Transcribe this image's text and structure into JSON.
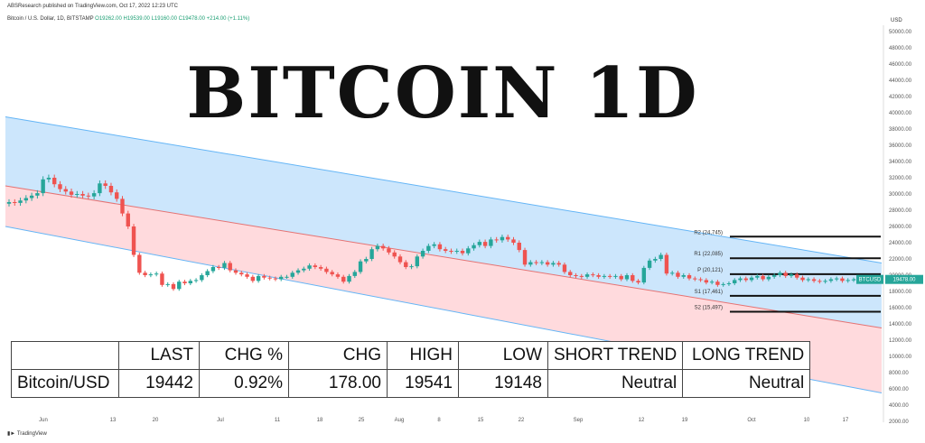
{
  "header": {
    "published": "ABSResearch published on TradingView.com, Oct 17, 2022 12:23 UTC"
  },
  "symbol": {
    "name": "Bitcoin / U.S. Dollar, 1D, BITSTAMP",
    "ohlc": "O19262.00 H19539.00 L19160.00 C19478.00",
    "change": "+214.00 (+1.11%)"
  },
  "title": "BITCOIN 1D",
  "currency": "USD",
  "price_label": "BTCUSD",
  "price_value": "19478.00",
  "footer": {
    "brand": "TradingView"
  },
  "table": {
    "headers": [
      "",
      "LAST",
      "CHG %",
      "CHG",
      "HIGH",
      "LOW",
      "SHORT TREND",
      "LONG TREND"
    ],
    "rows": [
      [
        "Bitcoin/USD",
        "19442",
        "0.92%",
        "178.00",
        "19541",
        "19148",
        "Neutral",
        "Neutral"
      ]
    ]
  },
  "colors": {
    "up": "#26a69a",
    "down": "#ef5350",
    "blue_channel": "#bbdefb",
    "red_channel": "#ffcdd2",
    "price_tag": "#26a69a"
  },
  "chart_data": {
    "type": "candlestick",
    "y_axis": {
      "range": [
        2000,
        50000
      ],
      "ticks": [
        "50000.00",
        "48000.00",
        "46000.00",
        "44000.00",
        "42000.00",
        "40000.00",
        "38000.00",
        "36000.00",
        "34000.00",
        "32000.00",
        "30000.00",
        "28000.00",
        "26000.00",
        "24000.00",
        "22000.00",
        "20000.00",
        "18000.00",
        "16000.00",
        "14000.00",
        "12000.00",
        "10000.00",
        "8000.00",
        "6000.00",
        "4000.00",
        "2000.00"
      ]
    },
    "x_axis": {
      "ticks": [
        "Jun",
        "13",
        "20",
        "Jul",
        "11",
        "18",
        "25",
        "Aug",
        "8",
        "15",
        "22",
        "Sep",
        "12",
        "19",
        "Oct",
        "10",
        "17"
      ]
    },
    "pivots": [
      {
        "label": "R2 (24,745)",
        "value": 24745
      },
      {
        "label": "R1 (22,085)",
        "value": 22085
      },
      {
        "label": "P (20,121)",
        "value": 20121
      },
      {
        "label": "S1 (17,461)",
        "value": 17461
      },
      {
        "label": "S2 (15,497)",
        "value": 15497
      }
    ],
    "channels": {
      "blue_upper": [
        39500,
        21500
      ],
      "mid": [
        31000,
        13500
      ],
      "red_lower": [
        26000,
        5500
      ]
    },
    "closes": [
      29000,
      28900,
      29200,
      29500,
      29800,
      30100,
      31800,
      32000,
      31200,
      30600,
      30300,
      29900,
      30000,
      29800,
      29700,
      30100,
      31300,
      31000,
      30200,
      29400,
      27600,
      26000,
      22500,
      20300,
      20000,
      20100,
      20200,
      18800,
      18900,
      18300,
      19200,
      19000,
      19300,
      19400,
      20000,
      20500,
      21000,
      20900,
      21500,
      20600,
      20300,
      20100,
      19800,
      19300,
      19900,
      19700,
      19600,
      19500,
      19800,
      19800,
      20300,
      20600,
      20800,
      21200,
      21000,
      20800,
      20400,
      20100,
      19800,
      19200,
      19900,
      20400,
      21700,
      22000,
      23200,
      23600,
      23300,
      22800,
      22300,
      21600,
      21000,
      21100,
      22300,
      23000,
      23600,
      23800,
      23200,
      23000,
      22900,
      23000,
      22700,
      23300,
      23700,
      24100,
      23600,
      24400,
      24300,
      24700,
      24400,
      24000,
      23100,
      21300,
      21600,
      21500,
      21600,
      21300,
      21500,
      21300,
      20400,
      20000,
      19900,
      19800,
      20100,
      20000,
      19800,
      19900,
      19800,
      19900,
      19500,
      20000,
      19300,
      19100,
      20900,
      21800,
      22000,
      22500,
      20200,
      20300,
      19800,
      20000,
      19600,
      19500,
      19400,
      19100,
      19200,
      18800,
      18900,
      19000,
      19400,
      19600,
      19400,
      19700,
      19900,
      19500,
      19800,
      20000,
      20300,
      19900,
      20100,
      19700,
      19400,
      19500,
      19300,
      19200,
      19300,
      19500,
      19600,
      19300,
      19400,
      19478
    ]
  }
}
